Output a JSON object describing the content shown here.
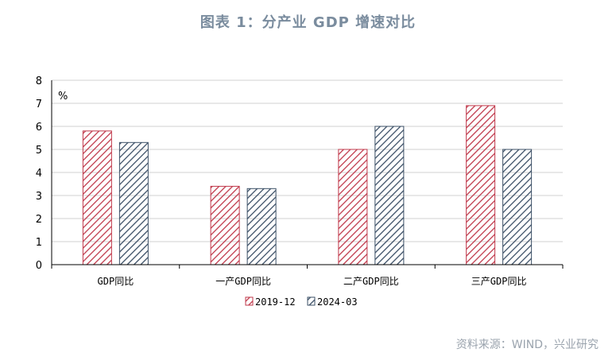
{
  "title": "图表 1：分产业 GDP 增速对比",
  "source": "资料来源：WIND，兴业研究",
  "chart_data": {
    "type": "bar",
    "unit": "%",
    "categories": [
      "GDP同比",
      "一产GDP同比",
      "二产GDP同比",
      "三产GDP同比"
    ],
    "series": [
      {
        "name": "2019-12",
        "values": [
          5.8,
          3.4,
          5.0,
          6.9
        ],
        "color": "#c0394b"
      },
      {
        "name": "2024-03",
        "values": [
          5.3,
          3.3,
          6.0,
          5.0
        ],
        "color": "#3b4f66"
      }
    ],
    "ylim": [
      0,
      8
    ],
    "yticks": [
      0,
      1,
      2,
      3,
      4,
      5,
      6,
      7,
      8
    ],
    "grid": true,
    "legend": "bottom"
  }
}
